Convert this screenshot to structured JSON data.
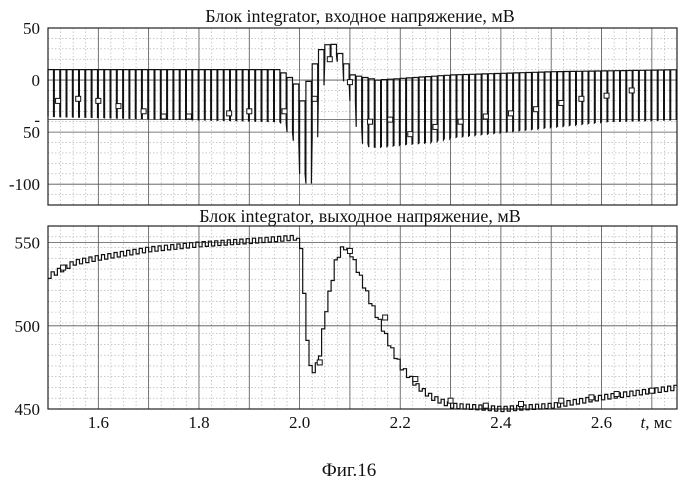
{
  "figure": {
    "caption": "Фиг.16"
  },
  "colors": {
    "trace": "#111111",
    "grid_major": "#555555",
    "grid_minor": "#aaaaaa",
    "frame": "#222222"
  },
  "chart_data": [
    {
      "type": "line",
      "title": "Блок integrator, входное напряжение, мВ",
      "xlabel": "",
      "ylabel": "",
      "xlim": [
        1.5,
        2.75
      ],
      "ylim": [
        -120,
        50
      ],
      "y_ticks": [
        {
          "value": 50,
          "label": "50"
        },
        {
          "value": 0,
          "label": "0"
        },
        {
          "value": -38,
          "label": "-"
        },
        {
          "value": -50,
          "label": "50"
        },
        {
          "value": -100,
          "label": "-100"
        }
      ],
      "grid": true,
      "series": [
        {
          "style": "step-pulse",
          "baseline": [
            [
              1.5,
              10
            ],
            [
              1.95,
              10
            ],
            [
              1.97,
              5
            ],
            [
              1.99,
              -5
            ],
            [
              2.0,
              -20
            ],
            [
              2.02,
              10
            ],
            [
              2.04,
              32
            ],
            [
              2.06,
              36
            ],
            [
              2.08,
              22
            ],
            [
              2.1,
              5
            ],
            [
              2.15,
              0
            ],
            [
              2.3,
              5
            ],
            [
              2.5,
              8
            ],
            [
              2.75,
              10
            ]
          ],
          "pulse_minima": [
            [
              1.5,
              -35
            ],
            [
              1.96,
              -40
            ],
            [
              1.99,
              -60
            ],
            [
              2.0,
              -90
            ],
            [
              2.012,
              -100
            ],
            [
              2.02,
              -90
            ],
            [
              2.03,
              -20
            ],
            [
              2.05,
              20
            ],
            [
              2.07,
              25
            ],
            [
              2.1,
              -20
            ],
            [
              2.12,
              -60
            ],
            [
              2.14,
              -65
            ],
            [
              2.2,
              -62
            ],
            [
              2.25,
              -60
            ],
            [
              2.3,
              -55
            ],
            [
              2.4,
              -50
            ],
            [
              2.5,
              -45
            ],
            [
              2.6,
              -40
            ],
            [
              2.75,
              -38
            ]
          ],
          "marker_values": [
            [
              1.52,
              -20
            ],
            [
              1.56,
              -18
            ],
            [
              1.6,
              -20
            ],
            [
              1.64,
              -25
            ],
            [
              1.69,
              -30
            ],
            [
              1.73,
              -35
            ],
            [
              1.78,
              -35
            ],
            [
              1.86,
              -32
            ],
            [
              1.9,
              -30
            ],
            [
              1.97,
              -30
            ],
            [
              2.03,
              -18
            ],
            [
              2.06,
              20
            ],
            [
              2.1,
              -2
            ],
            [
              2.14,
              -40
            ],
            [
              2.18,
              -38
            ],
            [
              2.22,
              -52
            ],
            [
              2.27,
              -45
            ],
            [
              2.32,
              -40
            ],
            [
              2.37,
              -35
            ],
            [
              2.42,
              -32
            ],
            [
              2.47,
              -28
            ],
            [
              2.52,
              -22
            ],
            [
              2.56,
              -18
            ],
            [
              2.61,
              -15
            ],
            [
              2.66,
              -10
            ]
          ]
        }
      ]
    },
    {
      "type": "line",
      "title": "Блок integrator, выходное напряжение, мВ",
      "xlabel": "t, мс",
      "ylabel": "",
      "xlim": [
        1.5,
        2.75
      ],
      "ylim": [
        450,
        560
      ],
      "x_ticks": [
        1.6,
        1.8,
        2.0,
        2.2,
        2.4,
        2.6
      ],
      "y_ticks": [
        550,
        500,
        450
      ],
      "grid": true,
      "series": [
        {
          "style": "step",
          "envelope": [
            [
              1.5,
              530
            ],
            [
              1.55,
              538
            ],
            [
              1.6,
              541
            ],
            [
              1.7,
              546
            ],
            [
              1.8,
              549
            ],
            [
              1.9,
              551
            ],
            [
              1.99,
              553
            ],
            [
              2.0,
              548
            ],
            [
              2.01,
              500
            ],
            [
              2.02,
              471
            ],
            [
              2.035,
              478
            ],
            [
              2.05,
              510
            ],
            [
              2.07,
              540
            ],
            [
              2.085,
              548
            ],
            [
              2.1,
              543
            ],
            [
              2.12,
              528
            ],
            [
              2.14,
              513
            ],
            [
              2.16,
              500
            ],
            [
              2.18,
              486
            ],
            [
              2.2,
              475
            ],
            [
              2.23,
              464
            ],
            [
              2.26,
              457
            ],
            [
              2.3,
              452
            ],
            [
              2.4,
              450
            ],
            [
              2.5,
              452
            ],
            [
              2.6,
              457
            ],
            [
              2.7,
              461
            ],
            [
              2.75,
              463
            ]
          ],
          "marker_values": [
            [
              1.53,
              535
            ],
            [
              2.04,
              478
            ],
            [
              2.1,
              545
            ],
            [
              2.17,
              505
            ],
            [
              2.23,
              468
            ],
            [
              2.3,
              455
            ],
            [
              2.37,
              452
            ],
            [
              2.44,
              453
            ],
            [
              2.52,
              455
            ],
            [
              2.58,
              457
            ],
            [
              2.63,
              459
            ],
            [
              2.7,
              461
            ]
          ]
        }
      ]
    }
  ]
}
